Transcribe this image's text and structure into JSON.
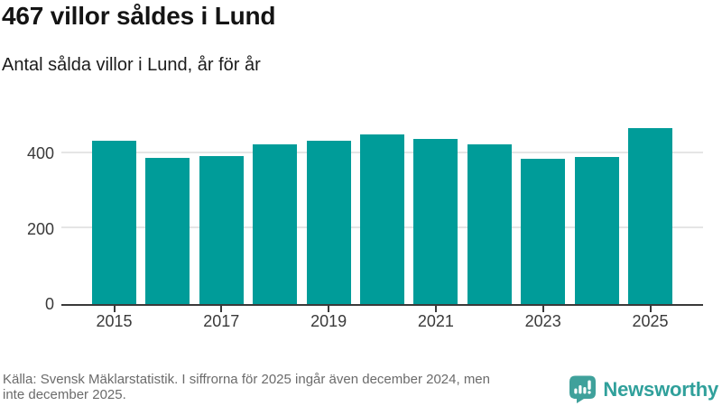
{
  "header": {
    "title": "467 villor såldes i Lund",
    "subtitle": "Antal sålda villor i Lund, år för år"
  },
  "chart_data": {
    "type": "bar",
    "categories": [
      "2015",
      "2016",
      "2017",
      "2018",
      "2019",
      "2020",
      "2021",
      "2022",
      "2023",
      "2024",
      "2025"
    ],
    "values": [
      433,
      387,
      393,
      423,
      434,
      451,
      439,
      425,
      386,
      390,
      467
    ],
    "title": "467 villor såldes i Lund",
    "subtitle": "Antal sålda villor i Lund, år för år",
    "xlabel": "",
    "ylabel": "",
    "ylim": [
      0,
      490
    ],
    "yticks": [
      0,
      200,
      400
    ],
    "xtick_labels": [
      "2015",
      "2017",
      "2019",
      "2021",
      "2023",
      "2025"
    ],
    "bar_color": "#009c99",
    "grid": true,
    "legend_position": "none"
  },
  "footer": {
    "source_lines": [
      "Källa: Svensk Mäklarstatistik. I siffrorna för 2025 ingår även december 2024, men",
      "inte december 2025."
    ],
    "logo_text": "Newsworthy"
  },
  "colors": {
    "accent": "#009c99",
    "logo": "#3fa19b",
    "logo_text": "#30a09b",
    "axis": "#3a3a3a",
    "gridline": "#e5e5e5",
    "muted_text": "#6b6b6b",
    "title_text": "#141414"
  }
}
